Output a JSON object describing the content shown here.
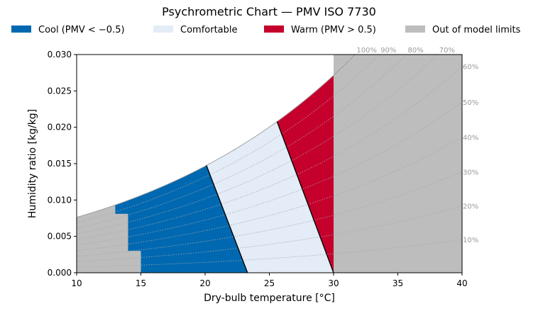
{
  "chart_data": {
    "type": "area",
    "title": "Psychrometric Chart — PMV ISO 7730",
    "xlabel": "Dry-bulb temperature [°C]",
    "ylabel": "Humidity ratio [kg/kg]",
    "xlim": [
      10,
      40
    ],
    "ylim": [
      0,
      0.03
    ],
    "x_ticks": [
      10,
      15,
      20,
      25,
      30,
      35,
      40
    ],
    "x_tick_labels": [
      "10",
      "15",
      "20",
      "25",
      "30",
      "35",
      "40"
    ],
    "y_ticks": [
      0,
      0.005,
      0.01,
      0.015,
      0.02,
      0.025,
      0.03
    ],
    "y_tick_labels": [
      "0.000",
      "0.005",
      "0.010",
      "0.015",
      "0.020",
      "0.025",
      "0.030"
    ],
    "grid": false,
    "legend_position": "top",
    "legend": [
      {
        "label": "Cool  (PMV < −0.5)",
        "color": "#0068b1"
      },
      {
        "label": "Comfortable",
        "color": "#e3ecf7"
      },
      {
        "label": "Warm  (PMV > 0.5)",
        "color": "#c6002c"
      },
      {
        "label": "Out of model limits",
        "color": "#bdbdbd"
      }
    ],
    "rh_curves": [
      {
        "rh": 100,
        "label": "100%"
      },
      {
        "rh": 90,
        "label": "90%"
      },
      {
        "rh": 80,
        "label": "80%"
      },
      {
        "rh": 70,
        "label": "70%"
      },
      {
        "rh": 60,
        "label": "60%"
      },
      {
        "rh": 50,
        "label": "50%"
      },
      {
        "rh": 40,
        "label": "40%"
      },
      {
        "rh": 30,
        "label": "30%"
      },
      {
        "rh": 20,
        "label": "20%"
      },
      {
        "rh": 10,
        "label": "10%"
      }
    ],
    "boundaries": [
      {
        "name": "PMV -0.5",
        "x_at_w0": 23.3,
        "x_at_saturation": 20.1
      },
      {
        "name": "PMV +0.5",
        "x_at_w0": 30.0,
        "x_at_saturation": 25.6
      }
    ],
    "region_limits": {
      "comfort_model_max_temp": 30,
      "low_temp_steps": [
        {
          "x": 15,
          "w_max": 0.003
        },
        {
          "x": 14,
          "w_max": 0.0081
        },
        {
          "x": 13,
          "w_max": 0.0093
        }
      ]
    }
  }
}
